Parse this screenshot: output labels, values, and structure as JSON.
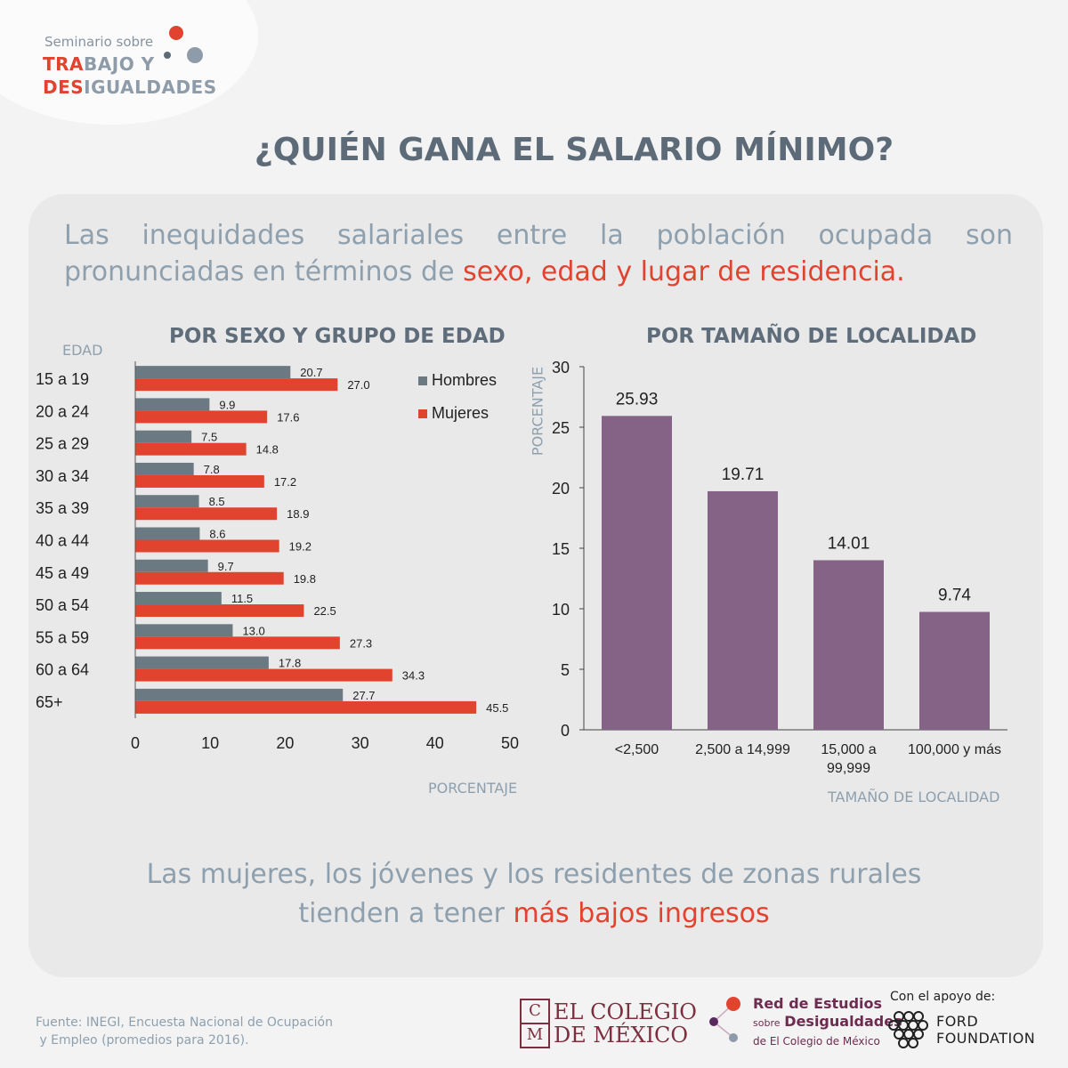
{
  "logo": {
    "line1": "Seminario sobre",
    "line2_hl": "TRA",
    "line2_rest": "BAJO Y",
    "line3_hl": "DES",
    "line3_rest": "IGUALDADES",
    "colors": {
      "red": "#e2432f",
      "gray": "#8e9ba8",
      "dark": "#5d6b78"
    }
  },
  "title": "¿QUIÉN GANA EL SALARIO MÍNIMO?",
  "intro": {
    "text": "Las inequidades salariales entre la población ocupada son pronunciadas en términos de ",
    "highlight": "sexo, edad y lugar de residencia."
  },
  "chart_data": [
    {
      "type": "bar",
      "orientation": "horizontal",
      "title": "POR SEXO Y GRUPO DE EDAD",
      "ylabel": "EDAD",
      "xlabel": "PORCENTAJE",
      "xlim": [
        0,
        50
      ],
      "xticks": [
        "0",
        "10",
        "20",
        "30",
        "40",
        "50"
      ],
      "legend_position": "top-right",
      "categories": [
        "15 a 19",
        "20 a 24",
        "25 a 29",
        "30 a 34",
        "35 a 39",
        "40 a 44",
        "45 a 49",
        "50 a 54",
        "55 a 59",
        "60 a 64",
        "65+"
      ],
      "series": [
        {
          "name": "Hombres",
          "color": "#6b7a82",
          "values": [
            20.7,
            9.9,
            7.5,
            7.8,
            8.5,
            8.6,
            9.7,
            11.5,
            13.0,
            17.8,
            27.7
          ],
          "labels": [
            "20.7",
            "9.9",
            "7.5",
            "7.8",
            "8.5",
            "8.6",
            "9.7",
            "11.5",
            "13.0",
            "17.8",
            "27.7"
          ]
        },
        {
          "name": "Mujeres",
          "color": "#e2432f",
          "values": [
            27.0,
            17.6,
            14.8,
            17.2,
            18.9,
            19.2,
            19.8,
            22.5,
            27.3,
            34.3,
            45.5
          ],
          "labels": [
            "27.0",
            "17.6",
            "14.8",
            "17.2",
            "18.9",
            "19.2",
            "19.8",
            "22.5",
            "27.3",
            "34.3",
            "45.5"
          ]
        }
      ]
    },
    {
      "type": "bar",
      "title": "POR TAMAÑO DE LOCALIDAD",
      "ylabel": "PORCENTAJE",
      "xlabel": "TAMAÑO DE LOCALIDAD",
      "ylim": [
        0,
        30
      ],
      "yticks": [
        "0",
        "5",
        "10",
        "15",
        "20",
        "25",
        "30"
      ],
      "categories": [
        [
          "<2,500"
        ],
        [
          "2,500 a 14,999"
        ],
        [
          "15,000 a",
          "99,999"
        ],
        [
          "100,000 y más"
        ]
      ],
      "values": [
        25.93,
        19.71,
        14.01,
        9.74
      ],
      "labels": [
        "25.93",
        "19.71",
        "14.01",
        "9.74"
      ],
      "color": "#856387"
    }
  ],
  "conclusion": {
    "line1": "Las mujeres, los jóvenes y los residentes de zonas rurales",
    "line2": "tienden a tener ",
    "line2_hl": "más bajos ingresos"
  },
  "fuente": {
    "line1": "Fuente: INEGI, Encuesta Nacional de Ocupación",
    "line2": " y Empleo (promedios para 2016)."
  },
  "footer": {
    "colegio_emblem_top": "C",
    "colegio_emblem_bottom": "M",
    "colegio_line1": "EL COLEGIO",
    "colegio_line2": "DE MÉXICO",
    "red_title": "Red de Estudios",
    "red_sobre": "sobre",
    "red_desig": "Desigualdades",
    "red_line3": "de El Colegio de México",
    "apoyo": "Con el apoyo de:",
    "ford_line1": "FORD",
    "ford_line2": "FOUNDATION"
  }
}
